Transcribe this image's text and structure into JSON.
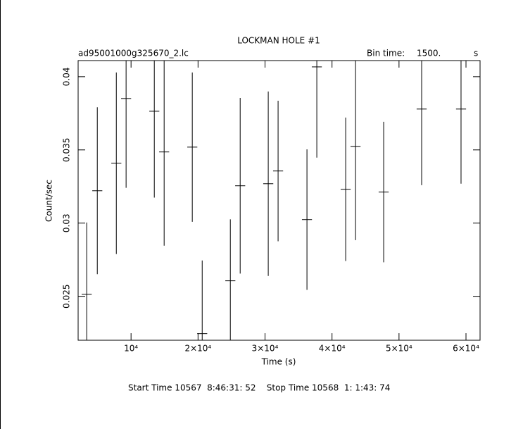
{
  "chart_data": {
    "type": "errorbar",
    "title": "LOCKMAN HOLE #1",
    "subtitle": "ad95001000g325670_2.lc",
    "bin_time_label": "Bin time:",
    "bin_time_value": "1500.",
    "bin_time_unit": "s",
    "x_label": "Time (s)",
    "y_label": "Count/sec",
    "footer": "Start Time 10567  8:46:31: 52    Stop Time 10568  1: 1:43: 74",
    "color": "#000000",
    "xerr": 750,
    "series": [
      {
        "x": [
          3380,
          4960,
          7800,
          9260,
          13470,
          14940,
          19140,
          20620,
          24820,
          26290,
          30480,
          31950,
          36260,
          37730,
          42040,
          43510,
          47710,
          53380,
          59260
        ],
        "values": [
          0.02514,
          0.03221,
          0.03409,
          0.03851,
          0.03764,
          0.03486,
          0.03519,
          0.02245,
          0.02606,
          0.03255,
          0.03269,
          0.03356,
          0.03024,
          0.04067,
          0.03231,
          0.03524,
          0.03212,
          0.03779,
          0.03779
        ],
        "errors": [
          0.0049,
          0.0057,
          0.0062,
          0.0061,
          0.0059,
          0.0064,
          0.0051,
          0.005,
          0.0042,
          0.006,
          0.0063,
          0.0048,
          0.0048,
          0.0062,
          0.0049,
          0.0064,
          0.0048,
          0.0052,
          0.0051
        ]
      }
    ],
    "xlim": [
      2100,
      62100
    ],
    "ylim": [
      0.022,
      0.0411
    ],
    "xticks": [
      {
        "value": 10000,
        "label": "10⁴"
      },
      {
        "value": 20000,
        "label": "2×10⁴"
      },
      {
        "value": 30000,
        "label": "3×10⁴"
      },
      {
        "value": 40000,
        "label": "4×10⁴"
      },
      {
        "value": 50000,
        "label": "5×10⁴"
      },
      {
        "value": 60000,
        "label": "6×10⁴"
      }
    ],
    "yticks": [
      0.025,
      0.03,
      0.035,
      0.04
    ]
  }
}
